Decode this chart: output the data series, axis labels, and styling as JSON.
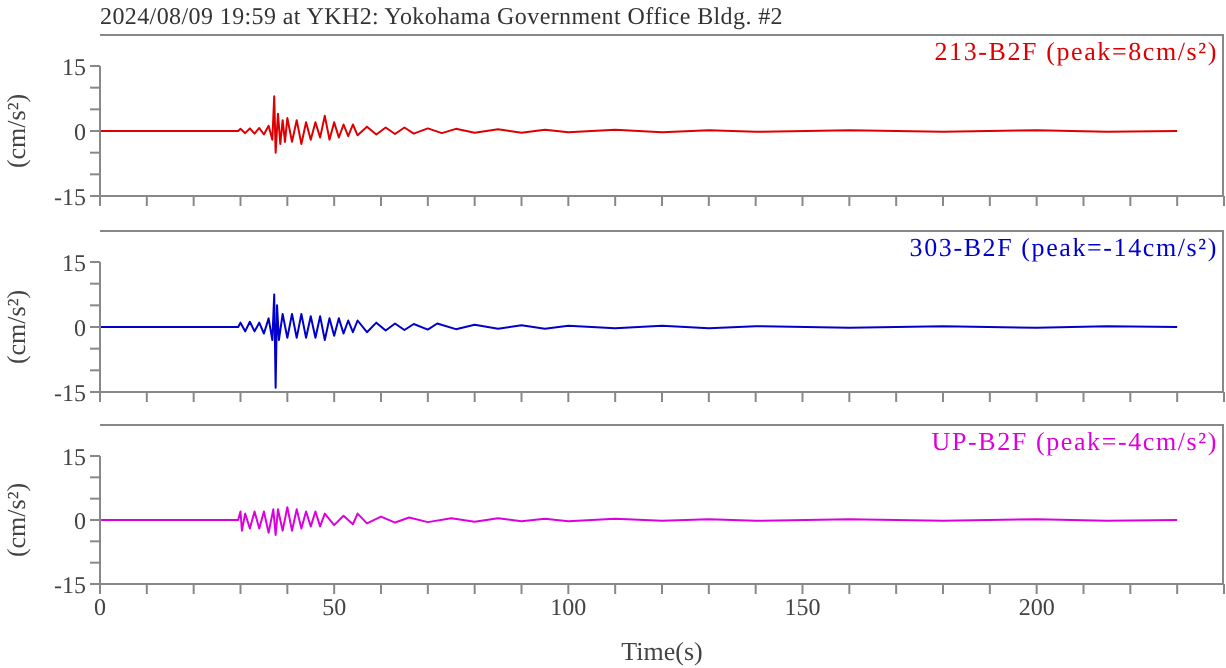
{
  "chart_data": [
    {
      "type": "line",
      "title": "2024/08/09 19:59 at YKH2: Yokohama Government Office Bldg. #2",
      "ylabel": "(cm/s²)",
      "xlim": [
        0,
        240
      ],
      "xticks": [
        0,
        {
          "value": 10,
          "label": null
        },
        {
          "value": 20,
          "label": null
        },
        {
          "value": 30,
          "label": null
        },
        {
          "value": 40,
          "label": null
        },
        50,
        {
          "value": 60,
          "label": null
        },
        {
          "value": 70,
          "label": null
        },
        {
          "value": 80,
          "label": null
        },
        {
          "value": 90,
          "label": null
        },
        100,
        {
          "value": 110,
          "label": null
        },
        {
          "value": 120,
          "label": null
        },
        {
          "value": 130,
          "label": null
        },
        {
          "value": 140,
          "label": null
        },
        150,
        {
          "value": 160,
          "label": null
        },
        {
          "value": 170,
          "label": null
        },
        {
          "value": 180,
          "label": null
        },
        {
          "value": 190,
          "label": null
        },
        200,
        {
          "value": 210,
          "label": null
        },
        {
          "value": 220,
          "label": null
        },
        {
          "value": 230,
          "label": null
        },
        {
          "value": 240,
          "label": null
        }
      ],
      "ylim": [
        -15,
        15
      ],
      "yticks": [
        -15,
        {
          "value": -10,
          "label": null
        },
        {
          "value": -5,
          "label": null
        },
        0,
        {
          "value": 5,
          "label": null
        },
        {
          "value": 10,
          "label": null
        },
        15
      ],
      "tick_labels": "y",
      "legend": "top right",
      "marker": "none",
      "x": [
        0,
        29.5,
        30,
        31,
        32,
        33,
        34,
        35,
        36,
        36.8,
        37.2,
        37.5,
        38,
        38.5,
        39,
        39.5,
        40,
        41,
        42,
        43,
        44,
        45,
        46,
        47,
        48,
        49,
        50,
        51,
        52,
        53,
        54,
        55,
        57,
        59,
        61,
        63,
        65,
        67,
        70,
        73,
        76,
        80,
        85,
        90,
        95,
        100,
        110,
        120,
        130,
        140,
        160,
        180,
        200,
        215,
        230
      ],
      "series": [
        {
          "name": "213-B2F (peak=8cm/s²)",
          "color": "#dd0000",
          "values": [
            0,
            0,
            0.5,
            -0.5,
            0.6,
            -0.6,
            0.7,
            -0.8,
            1.2,
            -2,
            8,
            -5,
            4,
            -3,
            2.5,
            -2.5,
            3,
            -2.5,
            2.5,
            -3,
            2,
            -2,
            2,
            -1.5,
            3.5,
            -2,
            2,
            -1.5,
            1.5,
            -1.2,
            1.5,
            -1,
            1,
            -0.8,
            0.8,
            -0.7,
            0.8,
            -0.6,
            0.6,
            -0.5,
            0.5,
            -0.4,
            0.4,
            -0.4,
            0.3,
            -0.3,
            0.3,
            -0.3,
            0.2,
            -0.2,
            0.2,
            -0.2,
            0.2,
            -0.2,
            0
          ]
        }
      ]
    },
    {
      "type": "line",
      "ylabel": "(cm/s²)",
      "xlim": [
        0,
        240
      ],
      "xticks": [
        0,
        {
          "value": 10,
          "label": null
        },
        {
          "value": 20,
          "label": null
        },
        {
          "value": 30,
          "label": null
        },
        {
          "value": 40,
          "label": null
        },
        50,
        {
          "value": 60,
          "label": null
        },
        {
          "value": 70,
          "label": null
        },
        {
          "value": 80,
          "label": null
        },
        {
          "value": 90,
          "label": null
        },
        100,
        {
          "value": 110,
          "label": null
        },
        {
          "value": 120,
          "label": null
        },
        {
          "value": 130,
          "label": null
        },
        {
          "value": 140,
          "label": null
        },
        150,
        {
          "value": 160,
          "label": null
        },
        {
          "value": 170,
          "label": null
        },
        {
          "value": 180,
          "label": null
        },
        {
          "value": 190,
          "label": null
        },
        200,
        {
          "value": 210,
          "label": null
        },
        {
          "value": 220,
          "label": null
        },
        {
          "value": 230,
          "label": null
        },
        {
          "value": 240,
          "label": null
        }
      ],
      "ylim": [
        -15,
        15
      ],
      "yticks": [
        -15,
        {
          "value": -10,
          "label": null
        },
        {
          "value": -5,
          "label": null
        },
        0,
        {
          "value": 5,
          "label": null
        },
        {
          "value": 10,
          "label": null
        },
        15
      ],
      "tick_labels": "y",
      "legend": "top right",
      "marker": "none",
      "x": [
        0,
        29.5,
        30,
        31,
        32,
        33,
        34,
        35,
        36,
        36.8,
        37.2,
        37.5,
        37.8,
        38.2,
        39,
        40,
        41,
        42,
        43,
        44,
        45,
        46,
        47,
        48,
        49,
        50,
        51,
        52,
        53,
        54,
        55,
        57,
        59,
        61,
        63,
        65,
        67,
        70,
        72,
        76,
        80,
        85,
        90,
        95,
        100,
        110,
        120,
        130,
        140,
        160,
        180,
        200,
        215,
        230
      ],
      "series": [
        {
          "name": "303-B2F (peak=-14cm/s²)",
          "color": "#0000cc",
          "values": [
            0,
            0,
            1,
            -1,
            1.2,
            -1,
            1,
            -1.5,
            2,
            -3,
            7.5,
            -14,
            5,
            -3,
            3,
            -2.5,
            3,
            -2.5,
            3,
            -2.5,
            2.5,
            -2.5,
            2.5,
            -3,
            2,
            -2,
            2,
            -1.5,
            1.5,
            -1.2,
            1.5,
            -1.2,
            1,
            -0.8,
            0.8,
            -0.7,
            0.7,
            -0.6,
            0.8,
            -0.5,
            0.5,
            -0.4,
            0.4,
            -0.4,
            0.3,
            -0.3,
            0.3,
            -0.3,
            0.2,
            -0.2,
            0.2,
            -0.2,
            0.2,
            0
          ]
        }
      ]
    },
    {
      "type": "line",
      "xlabel": "Time(s)",
      "ylabel": "(cm/s²)",
      "xlim": [
        0,
        240
      ],
      "xticks": [
        0,
        {
          "value": 10,
          "label": null
        },
        {
          "value": 20,
          "label": null
        },
        {
          "value": 30,
          "label": null
        },
        {
          "value": 40,
          "label": null
        },
        50,
        {
          "value": 60,
          "label": null
        },
        {
          "value": 70,
          "label": null
        },
        {
          "value": 80,
          "label": null
        },
        {
          "value": 90,
          "label": null
        },
        100,
        {
          "value": 110,
          "label": null
        },
        {
          "value": 120,
          "label": null
        },
        {
          "value": 130,
          "label": null
        },
        {
          "value": 140,
          "label": null
        },
        150,
        {
          "value": 160,
          "label": null
        },
        {
          "value": 170,
          "label": null
        },
        {
          "value": 180,
          "label": null
        },
        {
          "value": 190,
          "label": null
        },
        200,
        {
          "value": 210,
          "label": null
        },
        {
          "value": 220,
          "label": null
        },
        {
          "value": 230,
          "label": null
        },
        {
          "value": 240,
          "label": null
        }
      ],
      "ylim": [
        -15,
        15
      ],
      "yticks": [
        -15,
        {
          "value": -10,
          "label": null
        },
        {
          "value": -5,
          "label": null
        },
        0,
        {
          "value": 5,
          "label": null
        },
        {
          "value": 10,
          "label": null
        },
        15
      ],
      "legend": "top right",
      "marker": "none",
      "x": [
        0,
        29.5,
        30,
        30.3,
        31,
        32,
        33,
        34,
        35,
        36,
        37,
        37.5,
        38,
        39,
        40,
        41,
        42,
        43,
        44,
        45,
        46,
        47,
        48,
        50,
        52,
        54,
        55,
        57,
        60,
        63,
        66,
        70,
        75,
        80,
        85,
        90,
        95,
        100,
        110,
        120,
        130,
        140,
        160,
        180,
        200,
        215,
        230
      ],
      "series": [
        {
          "name": "UP-B2F (peak=-4cm/s²)",
          "color": "#dd00dd",
          "values": [
            0,
            0,
            2,
            -2.5,
            1.5,
            -2,
            2,
            -2,
            2,
            -3,
            2.5,
            -3.5,
            2.5,
            -2.5,
            3,
            -2.5,
            2.5,
            -2,
            2,
            -1.5,
            2,
            -1.5,
            1.5,
            -1.2,
            1,
            -1,
            1.5,
            -0.8,
            0.8,
            -0.6,
            0.6,
            -0.5,
            0.4,
            -0.4,
            0.4,
            -0.3,
            0.3,
            -0.3,
            0.3,
            -0.2,
            0.2,
            -0.2,
            0.2,
            -0.2,
            0.2,
            -0.2,
            0
          ]
        }
      ]
    }
  ]
}
